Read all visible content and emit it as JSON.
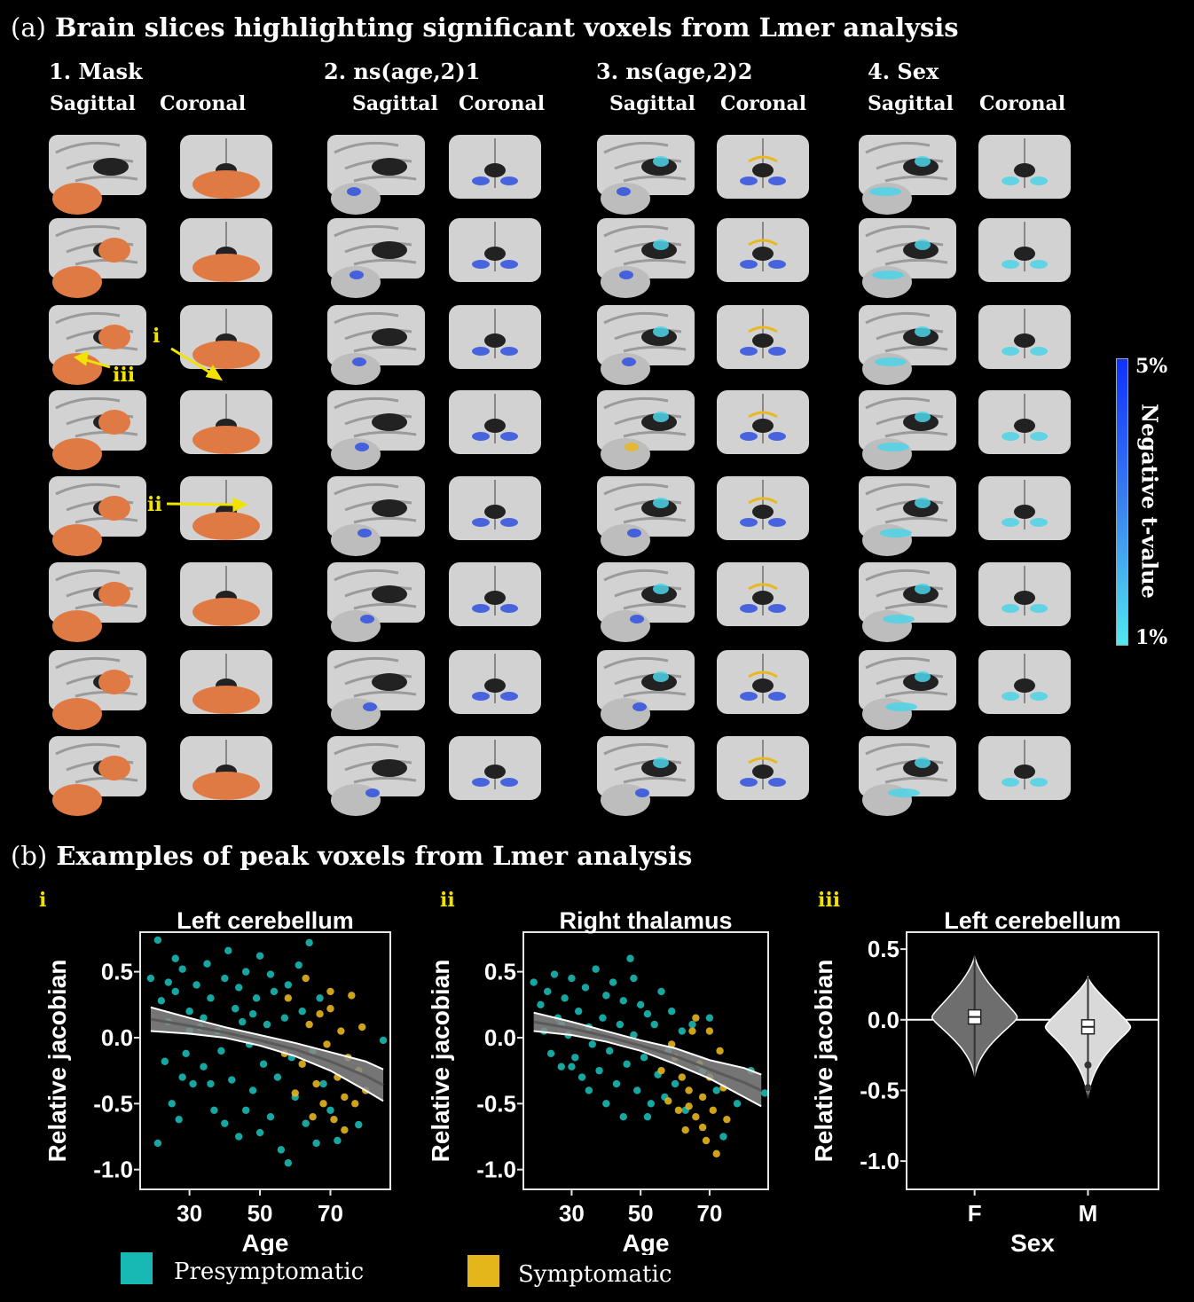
{
  "panel_a": {
    "letter": "(a)",
    "title": "Brain slices highlighting significant voxels from Lmer analysis",
    "columns": [
      {
        "title": "1. Mask",
        "views": [
          "Sagittal",
          "Coronal"
        ],
        "overlay": "mask"
      },
      {
        "title": "2. ns(age,2)1",
        "views": [
          "Sagittal",
          "Coronal"
        ],
        "overlay": "age1"
      },
      {
        "title": "3. ns(age,2)2",
        "views": [
          "Sagittal",
          "Coronal"
        ],
        "overlay": "age2"
      },
      {
        "title": "4. Sex",
        "views": [
          "Sagittal",
          "Coronal"
        ],
        "overlay": "sex"
      }
    ],
    "annotations": {
      "i": "i",
      "ii": "ii",
      "iii": "iii"
    },
    "colorbar": {
      "top_label": "5%",
      "bottom_label": "1%",
      "title": "Negative t-value",
      "colors": [
        "#1030ff",
        "#3a80f0",
        "#50e8f0"
      ]
    },
    "colors": {
      "mask": "#e07a45",
      "negative": "#4cd4e8",
      "negative_strong": "#3050e0",
      "positive": "#e8b820"
    }
  },
  "panel_b": {
    "letter": "(b)",
    "title": "Examples of peak voxels from Lmer analysis",
    "legend": [
      {
        "label": "Presymptomatic",
        "color": "#18b9b4"
      },
      {
        "label": "Symptomatic",
        "color": "#e5b51c"
      }
    ]
  },
  "chart_data": [
    {
      "type": "scatter",
      "panel": "i",
      "title": "Left cerebellum",
      "xlabel": "Age",
      "ylabel": "Relative jacobian",
      "xlim": [
        16,
        87
      ],
      "ylim": [
        -1.15,
        0.8
      ],
      "xticks": [
        30,
        50,
        70
      ],
      "yticks": [
        0.5,
        0.0,
        -0.5,
        -1.0
      ],
      "ytick_labels": [
        "0.5",
        "0.0",
        "-0.5",
        "-1.0"
      ],
      "series": [
        {
          "name": "Presymptomatic",
          "color": "#18b9b4",
          "points": [
            [
              21,
              0.74
            ],
            [
              19,
              0.45
            ],
            [
              22,
              0.28
            ],
            [
              24,
              0.12
            ],
            [
              26,
              0.35
            ],
            [
              23,
              -0.18
            ],
            [
              25,
              -0.5
            ],
            [
              21,
              -0.8
            ],
            [
              28,
              0.52
            ],
            [
              30,
              0.2
            ],
            [
              29,
              -0.12
            ],
            [
              32,
              0.4
            ],
            [
              31,
              -0.35
            ],
            [
              27,
              -0.62
            ],
            [
              33,
              0.08
            ],
            [
              35,
              0.56
            ],
            [
              34,
              -0.22
            ],
            [
              36,
              0.3
            ],
            [
              38,
              0.05
            ],
            [
              37,
              -0.55
            ],
            [
              40,
              0.45
            ],
            [
              39,
              -0.1
            ],
            [
              41,
              0.66
            ],
            [
              42,
              -0.32
            ],
            [
              43,
              0.22
            ],
            [
              44,
              -0.75
            ],
            [
              45,
              0.12
            ],
            [
              46,
              0.5
            ],
            [
              47,
              -0.05
            ],
            [
              48,
              -0.4
            ],
            [
              49,
              0.3
            ],
            [
              50,
              0.62
            ],
            [
              51,
              -0.2
            ],
            [
              52,
              0.1
            ],
            [
              53,
              -0.6
            ],
            [
              54,
              0.35
            ],
            [
              55,
              -0.3
            ],
            [
              56,
              -0.85
            ],
            [
              57,
              0.15
            ],
            [
              58,
              0.4
            ],
            [
              59,
              -0.15
            ],
            [
              60,
              -0.45
            ],
            [
              62,
              0.2
            ],
            [
              63,
              -0.65
            ],
            [
              64,
              0.72
            ],
            [
              65,
              -0.1
            ],
            [
              66,
              -0.8
            ],
            [
              68,
              -0.35
            ],
            [
              70,
              -0.55
            ],
            [
              72,
              -0.78
            ],
            [
              78,
              -0.66
            ],
            [
              85,
              -0.02
            ],
            [
              26,
              0.6
            ],
            [
              30,
              0.05
            ],
            [
              34,
              0.15
            ],
            [
              36,
              -0.35
            ],
            [
              44,
              0.38
            ],
            [
              46,
              -0.55
            ],
            [
              48,
              0.18
            ],
            [
              40,
              -0.65
            ],
            [
              53,
              0.48
            ],
            [
              58,
              -0.95
            ],
            [
              61,
              0.55
            ],
            [
              67,
              0.3
            ],
            [
              24,
              0.42
            ],
            [
              28,
              -0.3
            ],
            [
              50,
              -0.72
            ]
          ]
        },
        {
          "name": "Symptomatic",
          "color": "#e5b51c",
          "points": [
            [
              58,
              0.3
            ],
            [
              62,
              -0.2
            ],
            [
              64,
              0.1
            ],
            [
              66,
              -0.35
            ],
            [
              67,
              0.18
            ],
            [
              68,
              -0.5
            ],
            [
              69,
              -0.05
            ],
            [
              70,
              0.22
            ],
            [
              71,
              -0.62
            ],
            [
              72,
              -0.3
            ],
            [
              73,
              0.05
            ],
            [
              74,
              -0.45
            ],
            [
              75,
              -0.15
            ],
            [
              76,
              0.32
            ],
            [
              77,
              -0.5
            ],
            [
              78,
              -0.25
            ],
            [
              79,
              0.08
            ],
            [
              80,
              -0.4
            ],
            [
              65,
              -0.6
            ],
            [
              63,
              0.45
            ],
            [
              60,
              -0.42
            ],
            [
              57,
              -0.12
            ],
            [
              74,
              -0.7
            ],
            [
              70,
              0.35
            ]
          ]
        }
      ],
      "fit": {
        "x": [
          19,
          30,
          40,
          50,
          60,
          70,
          80,
          85
        ],
        "y": [
          0.14,
          0.09,
          0.04,
          -0.02,
          -0.09,
          -0.18,
          -0.29,
          -0.36
        ],
        "ci_low": [
          0.05,
          0.03,
          0.0,
          -0.06,
          -0.14,
          -0.25,
          -0.4,
          -0.48
        ],
        "ci_high": [
          0.23,
          0.15,
          0.08,
          0.02,
          -0.04,
          -0.11,
          -0.18,
          -0.24
        ]
      }
    },
    {
      "type": "scatter",
      "panel": "ii",
      "title": "Right thalamus",
      "xlabel": "Age",
      "ylabel": "Relative jacobian",
      "xlim": [
        16,
        87
      ],
      "ylim": [
        -1.15,
        0.8
      ],
      "xticks": [
        30,
        50,
        70
      ],
      "yticks": [
        0.5,
        0.0,
        -0.5,
        -1.0
      ],
      "ytick_labels": [
        "0.5",
        "0.0",
        "-0.5",
        "-1.0"
      ],
      "series": [
        {
          "name": "Presymptomatic",
          "color": "#18b9b4",
          "points": [
            [
              19,
              0.42
            ],
            [
              21,
              0.25
            ],
            [
              22,
              0.05
            ],
            [
              23,
              0.35
            ],
            [
              24,
              -0.12
            ],
            [
              25,
              0.48
            ],
            [
              26,
              0.15
            ],
            [
              27,
              -0.22
            ],
            [
              28,
              0.3
            ],
            [
              29,
              0.02
            ],
            [
              30,
              0.45
            ],
            [
              31,
              -0.15
            ],
            [
              32,
              0.2
            ],
            [
              33,
              -0.3
            ],
            [
              34,
              0.38
            ],
            [
              35,
              0.08
            ],
            [
              36,
              -0.05
            ],
            [
              37,
              0.52
            ],
            [
              38,
              -0.25
            ],
            [
              39,
              0.15
            ],
            [
              40,
              0.32
            ],
            [
              41,
              -0.1
            ],
            [
              42,
              0.42
            ],
            [
              43,
              -0.35
            ],
            [
              44,
              0.1
            ],
            [
              45,
              0.28
            ],
            [
              46,
              -0.2
            ],
            [
              47,
              0.6
            ],
            [
              48,
              0.02
            ],
            [
              49,
              -0.4
            ],
            [
              50,
              0.25
            ],
            [
              51,
              -0.15
            ],
            [
              52,
              0.18
            ],
            [
              53,
              -0.5
            ],
            [
              54,
              0.1
            ],
            [
              55,
              -0.28
            ],
            [
              56,
              0.35
            ],
            [
              57,
              -0.45
            ],
            [
              58,
              -0.1
            ],
            [
              59,
              0.2
            ],
            [
              60,
              -0.35
            ],
            [
              62,
              0.05
            ],
            [
              63,
              -0.55
            ],
            [
              65,
              0.1
            ],
            [
              68,
              -0.25
            ],
            [
              70,
              0.15
            ],
            [
              72,
              -0.4
            ],
            [
              74,
              -0.75
            ],
            [
              78,
              -0.5
            ],
            [
              82,
              -0.25
            ],
            [
              86,
              -0.42
            ],
            [
              35,
              -0.4
            ],
            [
              40,
              -0.5
            ],
            [
              45,
              -0.6
            ],
            [
              52,
              -0.6
            ],
            [
              30,
              -0.22
            ],
            [
              27,
              0.1
            ],
            [
              48,
              0.45
            ]
          ]
        },
        {
          "name": "Symptomatic",
          "color": "#e5b51c",
          "points": [
            [
              56,
              -0.25
            ],
            [
              58,
              -0.48
            ],
            [
              60,
              -0.15
            ],
            [
              61,
              -0.55
            ],
            [
              62,
              -0.3
            ],
            [
              63,
              -0.7
            ],
            [
              64,
              -0.4
            ],
            [
              65,
              0.05
            ],
            [
              66,
              -0.6
            ],
            [
              67,
              -0.2
            ],
            [
              68,
              -0.45
            ],
            [
              69,
              -0.78
            ],
            [
              70,
              -0.3
            ],
            [
              71,
              -0.55
            ],
            [
              72,
              -0.88
            ],
            [
              73,
              -0.1
            ],
            [
              74,
              -0.38
            ],
            [
              75,
              -0.62
            ],
            [
              66,
              0.15
            ],
            [
              70,
              0.05
            ],
            [
              59,
              -0.05
            ],
            [
              64,
              -0.52
            ],
            [
              68,
              -0.68
            ]
          ]
        }
      ],
      "fit": {
        "x": [
          19,
          30,
          40,
          50,
          60,
          70,
          80,
          85
        ],
        "y": [
          0.12,
          0.07,
          0.01,
          -0.06,
          -0.14,
          -0.24,
          -0.34,
          -0.4
        ],
        "ci_low": [
          0.05,
          0.02,
          -0.03,
          -0.1,
          -0.2,
          -0.31,
          -0.45,
          -0.52
        ],
        "ci_high": [
          0.19,
          0.12,
          0.05,
          -0.02,
          -0.08,
          -0.17,
          -0.23,
          -0.28
        ]
      }
    },
    {
      "type": "violin",
      "panel": "iii",
      "title": "Left cerebellum",
      "xlabel": "Sex",
      "ylabel": "Relative jacobian",
      "categories": [
        "F",
        "M"
      ],
      "ylim": [
        -1.2,
        0.62
      ],
      "yticks": [
        0.5,
        0.0,
        -0.5,
        -1.0
      ],
      "ytick_labels": [
        "0.5",
        "0.0",
        "-0.5",
        "-1.0"
      ],
      "series": [
        {
          "name": "F",
          "fill": "#6e6e6e",
          "median": 0.02,
          "q1": -0.03,
          "q3": 0.07,
          "min": -0.4,
          "max": 0.45
        },
        {
          "name": "M",
          "fill": "#d9d9d9",
          "median": -0.05,
          "q1": -0.1,
          "q3": 0.0,
          "min": -0.55,
          "max": 0.3,
          "outliers": [
            -0.32,
            -0.48
          ]
        }
      ],
      "reference_line": 0.0
    }
  ]
}
